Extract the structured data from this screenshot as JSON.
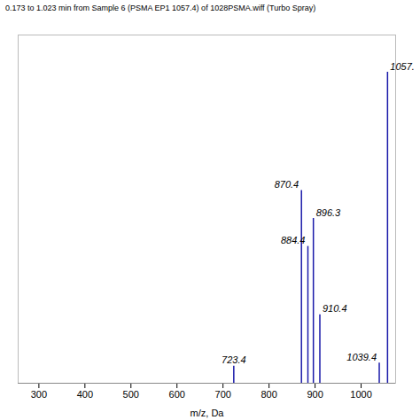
{
  "chart_data": {
    "type": "stem",
    "title": "0.173 to 1.023 min from Sample 6 (PSMA EP1 1057.4) of 1028PSMA.wiff (Turbo Spray)",
    "xlabel": "m/z, Da",
    "x": [
      723.4,
      870.4,
      884.4,
      896.3,
      910.4,
      1039.4,
      1057.4
    ],
    "values": [
      0.055,
      0.62,
      0.44,
      0.53,
      0.22,
      0.065,
      1.0
    ],
    "annotations": [
      "723.4",
      "870.4",
      "884.4",
      "896.3",
      "910.4",
      "1039.4",
      "1057."
    ],
    "color": "#1a1aaa",
    "xlim": [
      255,
      1075
    ],
    "ylim": [
      0,
      1.12
    ],
    "xticks": [
      300,
      400,
      500,
      600,
      700,
      800,
      900,
      1000
    ],
    "tick_labels": "x",
    "grid": false
  }
}
